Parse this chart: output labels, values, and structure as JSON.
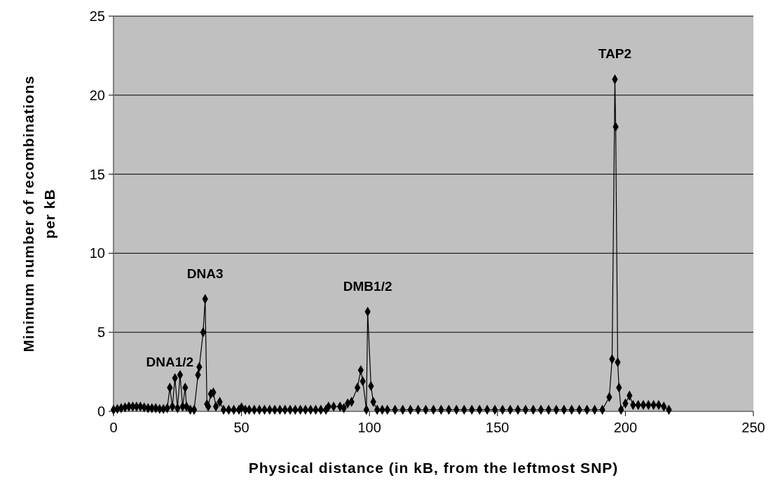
{
  "chart_data": {
    "type": "line",
    "xlabel": "Physical distance (in kB, from the leftmost SNP)",
    "ylabel": "Minimum number of recombinations per kB",
    "xlim": [
      0,
      250
    ],
    "xticks": [
      0,
      50,
      100,
      150,
      200,
      250
    ],
    "ylim": [
      0,
      25
    ],
    "yticks": [
      0,
      5,
      10,
      15,
      20,
      25
    ],
    "grid": "y",
    "marker": "diamond",
    "line_style": "solid",
    "series": [
      {
        "color": "#000000",
        "x": [
          0,
          1.5,
          3,
          4.5,
          6,
          7.5,
          9,
          10.5,
          12,
          13.5,
          15,
          16.5,
          18,
          19.5,
          21,
          22,
          23,
          24,
          25,
          26,
          27,
          28,
          28.5,
          30,
          31.5,
          33,
          33.5,
          35,
          35.8,
          36.5,
          37,
          38,
          39,
          40,
          41.5,
          43,
          45,
          47,
          49,
          50,
          51.5,
          53,
          55,
          57,
          59,
          61,
          63,
          65,
          67,
          69,
          71,
          73,
          75,
          77,
          79,
          81,
          83,
          84,
          86,
          88.5,
          90,
          91.5,
          93,
          95.3,
          96.6,
          97.4,
          98.8,
          99.3,
          100.6,
          101.5,
          103,
          105,
          107,
          110,
          113,
          116,
          119,
          122,
          125,
          128,
          131,
          134,
          137,
          140,
          143,
          146,
          149,
          152,
          155,
          158,
          161,
          164,
          167,
          170,
          173,
          176,
          179,
          182,
          185,
          188,
          191,
          193.7,
          194.8,
          195.9,
          196.2,
          197,
          197.5,
          198.3,
          200,
          201.6,
          203,
          205,
          207,
          209,
          211,
          213,
          215,
          217
        ],
        "values": [
          0.1,
          0.15,
          0.2,
          0.25,
          0.3,
          0.3,
          0.3,
          0.3,
          0.25,
          0.2,
          0.2,
          0.2,
          0.15,
          0.15,
          0.2,
          1.5,
          0.3,
          2.1,
          0.2,
          2.3,
          0.3,
          1.5,
          0.3,
          0.1,
          0.1,
          2.3,
          2.8,
          5.0,
          7.1,
          0.45,
          0.3,
          1.1,
          1.2,
          0.3,
          0.6,
          0.1,
          0.1,
          0.1,
          0.1,
          0.25,
          0.1,
          0.1,
          0.1,
          0.1,
          0.1,
          0.1,
          0.1,
          0.1,
          0.1,
          0.1,
          0.1,
          0.1,
          0.1,
          0.1,
          0.1,
          0.1,
          0.1,
          0.3,
          0.3,
          0.3,
          0.2,
          0.5,
          0.6,
          1.5,
          2.6,
          1.9,
          0.1,
          6.3,
          1.6,
          0.6,
          0.1,
          0.1,
          0.1,
          0.1,
          0.1,
          0.1,
          0.1,
          0.1,
          0.1,
          0.1,
          0.1,
          0.1,
          0.1,
          0.1,
          0.1,
          0.1,
          0.1,
          0.1,
          0.1,
          0.1,
          0.1,
          0.1,
          0.1,
          0.1,
          0.1,
          0.1,
          0.1,
          0.1,
          0.1,
          0.1,
          0.1,
          0.9,
          3.3,
          21,
          18,
          3.1,
          1.5,
          0.1,
          0.5,
          1.0,
          0.4,
          0.4,
          0.4,
          0.4,
          0.4,
          0.4,
          0.3,
          0.1
        ]
      }
    ],
    "annotations": [
      {
        "text": "DNA1/2",
        "x": 22,
        "y": 1.5
      },
      {
        "text": "DNA3",
        "x": 35.8,
        "y": 7.1
      },
      {
        "text": "DMB1/2",
        "x": 99.3,
        "y": 6.3
      },
      {
        "text": "TAP2",
        "x": 195.9,
        "y": 21
      }
    ]
  }
}
